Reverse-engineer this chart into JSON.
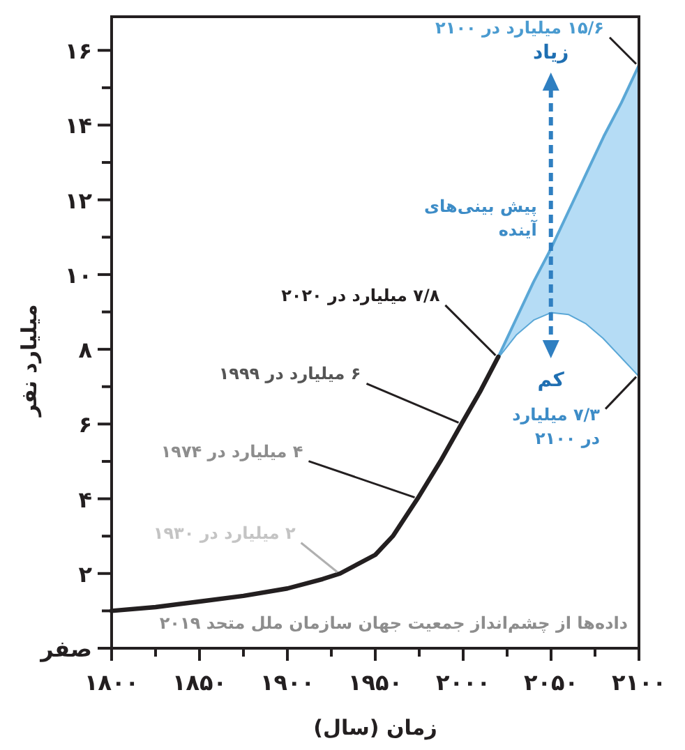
{
  "chart_data": {
    "type": "line",
    "xlabel": "زمان (سال)",
    "ylabel": "میلیارد نفر",
    "xlim": [
      1800,
      2100
    ],
    "ylim": [
      0,
      16.9
    ],
    "xticks": [
      {
        "value": 1800,
        "label": "۱۸۰۰"
      },
      {
        "value": 1825,
        "label": null
      },
      {
        "value": 1850,
        "label": "۱۸۵۰"
      },
      {
        "value": 1875,
        "label": null
      },
      {
        "value": 1900,
        "label": "۱۹۰۰"
      },
      {
        "value": 1925,
        "label": null
      },
      {
        "value": 1950,
        "label": "۱۹۵۰"
      },
      {
        "value": 1975,
        "label": null
      },
      {
        "value": 2000,
        "label": "۲۰۰۰"
      },
      {
        "value": 2025,
        "label": null
      },
      {
        "value": 2050,
        "label": "۲۰۵۰"
      },
      {
        "value": 2075,
        "label": null
      },
      {
        "value": 2100,
        "label": "۲۱۰۰"
      }
    ],
    "yticks": [
      {
        "value": 0,
        "label": "صفر"
      },
      {
        "value": 1,
        "label": null
      },
      {
        "value": 2,
        "label": "۲"
      },
      {
        "value": 3,
        "label": null
      },
      {
        "value": 4,
        "label": "۴"
      },
      {
        "value": 5,
        "label": null
      },
      {
        "value": 6,
        "label": "۶"
      },
      {
        "value": 7,
        "label": null
      },
      {
        "value": 8,
        "label": "۸"
      },
      {
        "value": 9,
        "label": null
      },
      {
        "value": 10,
        "label": "۱۰"
      },
      {
        "value": 11,
        "label": null
      },
      {
        "value": 12,
        "label": "۱۲"
      },
      {
        "value": 13,
        "label": null
      },
      {
        "value": 14,
        "label": "۱۴"
      },
      {
        "value": 15,
        "label": null
      },
      {
        "value": 16,
        "label": "۱۶"
      }
    ],
    "series": [
      {
        "color": "#231f20",
        "x": [
          1800,
          1825,
          1850,
          1875,
          1900,
          1920,
          1930,
          1950,
          1960,
          1974,
          1987,
          1999,
          2010,
          2020
        ],
        "values": [
          1.0,
          1.1,
          1.25,
          1.4,
          1.6,
          1.85,
          2.0,
          2.5,
          3.0,
          4.0,
          5.0,
          6.0,
          6.9,
          7.8
        ]
      },
      {
        "color": "#5aa7d6",
        "x": [
          2020,
          2030,
          2040,
          2050,
          2060,
          2070,
          2080,
          2090,
          2100
        ],
        "values": [
          7.8,
          8.8,
          9.8,
          10.7,
          11.7,
          12.7,
          13.7,
          14.6,
          15.6
        ],
        "lower": [
          7.8,
          8.4,
          8.8,
          9.0,
          8.95,
          8.7,
          8.3,
          7.8,
          7.3
        ],
        "upper": [
          7.8,
          8.8,
          9.8,
          10.7,
          11.7,
          12.7,
          13.7,
          14.6,
          15.6
        ]
      },
      {
        "color": "#5aa7d6",
        "x": [
          2020,
          2030,
          2040,
          2050,
          2060,
          2070,
          2080,
          2090,
          2100
        ],
        "values": [
          7.8,
          8.4,
          8.8,
          9.0,
          8.95,
          8.7,
          8.3,
          7.8,
          7.3
        ]
      }
    ],
    "annotations": [
      {
        "text": "۲ میلیارد در ۱۹۳۰",
        "x": 1930,
        "y": 2
      },
      {
        "text": "۴ میلیارد در ۱۹۷۴",
        "x": 1974,
        "y": 4
      },
      {
        "text": "۶ میلیارد در ۱۹۹۹",
        "x": 1999,
        "y": 6
      },
      {
        "text": "۷/۸ میلیارد در ۲۰۲۰",
        "x": 2020,
        "y": 7.8
      },
      {
        "text": "۱۵/۶ میلیارد در ۲۱۰۰",
        "x": 2100,
        "y": 15.6
      },
      "زیاد",
      "پیش بینی‌های\nآینده",
      "کم",
      {
        "text": "۷/۳ میلیارد\nدر ۲۱۰۰",
        "x": 2100,
        "y": 7.3
      },
      "داده‌ها از چشم‌انداز جمعیت جهان سازمان ملل متحد ۲۰۱۹"
    ]
  }
}
